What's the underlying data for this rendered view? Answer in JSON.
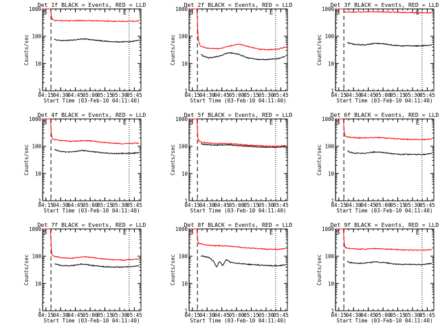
{
  "chart_data": [
    {
      "type": "line",
      "title": "Det 1f BLACK = Events, RED = LLD",
      "ylabel": "Counts/sec",
      "xlabel": "Start Time (03-Feb-10 04:11:40)",
      "xticks": [
        "04:15",
        "04:30",
        "04:45",
        "05:00",
        "05:15",
        "05:30",
        "05:45"
      ],
      "yticks": [
        "1",
        "10",
        "100",
        "1000"
      ],
      "ylim": [
        1,
        1000
      ],
      "yscale": "log",
      "x_unit": "minutes after 04:11:40",
      "s_label": "S",
      "e_label": "E",
      "series": [
        {
          "name": "Events",
          "color": "#000000",
          "x": [
            12,
            14,
            20,
            30,
            40,
            50,
            60,
            70,
            80,
            90,
            98
          ],
          "y": [
            78,
            72,
            70,
            72,
            80,
            74,
            68,
            62,
            62,
            64,
            70
          ]
        },
        {
          "name": "LLD",
          "color": "#ff0000",
          "x": [
            0,
            8,
            8.5,
            9,
            10,
            12,
            20,
            30,
            40,
            50,
            60,
            70,
            80,
            90,
            98
          ],
          "y": [
            1000,
            1000,
            700,
            500,
            420,
            380,
            370,
            370,
            375,
            372,
            360,
            355,
            350,
            355,
            360
          ]
        }
      ]
    },
    {
      "type": "line",
      "title": "Det 2f BLACK = Events, RED = LLD",
      "ylabel": "Counts/sec",
      "xlabel": "Start Time (03-Feb-10 04:11:40)",
      "xticks": [
        "04:15",
        "04:30",
        "04:45",
        "05:00",
        "05:15",
        "05:30",
        "05:45"
      ],
      "yticks": [
        "1",
        "10",
        "100",
        "1000"
      ],
      "ylim": [
        1,
        1000
      ],
      "yscale": "log",
      "x_unit": "minutes after 04:11:40",
      "s_label": "S",
      "e_label": "E",
      "series": [
        {
          "name": "Events",
          "color": "#000000",
          "x": [
            12,
            14,
            20,
            30,
            40,
            50,
            60,
            70,
            80,
            90,
            98
          ],
          "y": [
            22,
            19,
            16,
            18,
            25,
            22,
            16,
            14,
            14,
            15,
            18
          ]
        },
        {
          "name": "LLD",
          "color": "#ff0000",
          "x": [
            0,
            8,
            8.5,
            9,
            10,
            12,
            20,
            30,
            40,
            50,
            60,
            70,
            80,
            90,
            98
          ],
          "y": [
            1000,
            1000,
            300,
            120,
            60,
            42,
            36,
            35,
            42,
            52,
            42,
            34,
            32,
            33,
            40
          ]
        }
      ]
    },
    {
      "type": "line",
      "title": "Det 3f BLACK = Events, RED = LLD",
      "ylabel": "Counts/sec",
      "xlabel": "Start Time (03-Feb-10 04:11:40)",
      "xticks": [
        "04:15",
        "04:30",
        "04:45",
        "05:00",
        "05:15",
        "05:30",
        "05:45"
      ],
      "yticks": [
        "1",
        "10",
        "100",
        "1000"
      ],
      "ylim": [
        1,
        1000
      ],
      "yscale": "log",
      "x_unit": "minutes after 04:11:40",
      "s_label": "S",
      "e_label": "E",
      "series": [
        {
          "name": "Events",
          "color": "#000000",
          "x": [
            12,
            14,
            20,
            30,
            40,
            50,
            60,
            70,
            80,
            90,
            98
          ],
          "y": [
            60,
            55,
            50,
            48,
            55,
            52,
            46,
            44,
            44,
            45,
            48
          ]
        },
        {
          "name": "LLD",
          "color": "#ff0000",
          "x": [
            0,
            8,
            8.5,
            9,
            10,
            12,
            20,
            30,
            40,
            50,
            60,
            70,
            80,
            90,
            98
          ],
          "y": [
            1000,
            1000,
            900,
            800,
            780,
            770,
            770,
            780,
            790,
            780,
            760,
            740,
            730,
            720,
            730
          ]
        }
      ]
    },
    {
      "type": "line",
      "title": "Det 4f BLACK = Events, RED = LLD",
      "ylabel": "Counts/sec",
      "xlabel": "Start Time (03-Feb-10 04:11:40)",
      "xticks": [
        "04:15",
        "04:30",
        "04:45",
        "05:00",
        "05:15",
        "05:30",
        "05:45"
      ],
      "yticks": [
        "1",
        "10",
        "100",
        "1000"
      ],
      "ylim": [
        1,
        1000
      ],
      "yscale": "log",
      "x_unit": "minutes after 04:11:40",
      "s_label": "S",
      "e_label": "E",
      "series": [
        {
          "name": "Events",
          "color": "#000000",
          "x": [
            12,
            14,
            20,
            30,
            40,
            50,
            60,
            70,
            80,
            90,
            98
          ],
          "y": [
            80,
            70,
            62,
            62,
            70,
            64,
            58,
            54,
            54,
            55,
            58
          ]
        },
        {
          "name": "LLD",
          "color": "#ff0000",
          "x": [
            0,
            8,
            8.5,
            9,
            10,
            12,
            20,
            30,
            40,
            50,
            60,
            70,
            80,
            90,
            98
          ],
          "y": [
            1000,
            1000,
            400,
            250,
            190,
            175,
            160,
            150,
            160,
            155,
            140,
            130,
            125,
            125,
            130
          ]
        }
      ]
    },
    {
      "type": "line",
      "title": "Det 5f BLACK = Events, RED = LLD",
      "ylabel": "Counts/sec",
      "xlabel": "Start Time (03-Feb-10 04:11:40)",
      "xticks": [
        "04:15",
        "04:30",
        "04:45",
        "05:00",
        "05:15",
        "05:30",
        "05:45"
      ],
      "yticks": [
        "1",
        "10",
        "100",
        "1000"
      ],
      "ylim": [
        1,
        1000
      ],
      "yscale": "log",
      "x_unit": "minutes after 04:11:40",
      "s_label": "S",
      "e_label": "E",
      "series": [
        {
          "name": "Events",
          "color": "#000000",
          "x": [
            12,
            14,
            20,
            30,
            40,
            50,
            60,
            70,
            80,
            90,
            98
          ],
          "y": [
            125,
            118,
            112,
            110,
            112,
            105,
            100,
            95,
            92,
            92,
            95
          ]
        },
        {
          "name": "LLD",
          "color": "#ff0000",
          "x": [
            0,
            8,
            8.5,
            9,
            10,
            12,
            20,
            30,
            40,
            50,
            60,
            70,
            80,
            90,
            98
          ],
          "y": [
            1000,
            1000,
            350,
            200,
            155,
            140,
            130,
            125,
            125,
            118,
            110,
            105,
            100,
            100,
            105
          ]
        }
      ]
    },
    {
      "type": "line",
      "title": "Det 6f BLACK = Events, RED = LLD",
      "ylabel": "Counts/sec",
      "xlabel": "Start Time (03-Feb-10 04:11:40)",
      "xticks": [
        "04:15",
        "04:30",
        "04:45",
        "05:00",
        "05:15",
        "05:30",
        "05:45"
      ],
      "yticks": [
        "1",
        "10",
        "100",
        "1000"
      ],
      "ylim": [
        1,
        1000
      ],
      "yscale": "log",
      "x_unit": "minutes after 04:11:40",
      "s_label": "S",
      "e_label": "E",
      "series": [
        {
          "name": "Events",
          "color": "#000000",
          "x": [
            12,
            14,
            20,
            30,
            40,
            50,
            60,
            70,
            80,
            90,
            98
          ],
          "y": [
            68,
            62,
            55,
            55,
            62,
            58,
            52,
            50,
            50,
            50,
            55
          ]
        },
        {
          "name": "LLD",
          "color": "#ff0000",
          "x": [
            0,
            8,
            8.5,
            9,
            10,
            12,
            20,
            30,
            40,
            50,
            60,
            70,
            80,
            90,
            98
          ],
          "y": [
            1000,
            1000,
            500,
            300,
            240,
            220,
            205,
            200,
            210,
            200,
            190,
            180,
            175,
            175,
            185
          ]
        }
      ]
    },
    {
      "type": "line",
      "title": "Det 7f BLACK = Events, RED = LLD",
      "ylabel": "Counts/sec",
      "xlabel": "Start Time (03-Feb-10 04:11:40)",
      "xticks": [
        "04:15",
        "04:30",
        "04:45",
        "05:00",
        "05:15",
        "05:30",
        "05:45"
      ],
      "yticks": [
        "1",
        "10",
        "100",
        "1000"
      ],
      "ylim": [
        1,
        1000
      ],
      "yscale": "log",
      "x_unit": "minutes after 04:11:40",
      "s_label": "S",
      "e_label": "E",
      "series": [
        {
          "name": "Events",
          "color": "#000000",
          "x": [
            12,
            14,
            20,
            30,
            40,
            50,
            60,
            70,
            80,
            90,
            98
          ],
          "y": [
            55,
            50,
            45,
            45,
            52,
            46,
            42,
            40,
            40,
            42,
            45
          ]
        },
        {
          "name": "LLD",
          "color": "#ff0000",
          "x": [
            0,
            8,
            8.5,
            9,
            10,
            12,
            20,
            30,
            40,
            50,
            60,
            70,
            80,
            90,
            98
          ],
          "y": [
            1000,
            1000,
            300,
            150,
            110,
            98,
            88,
            85,
            95,
            90,
            80,
            75,
            72,
            75,
            80
          ]
        }
      ]
    },
    {
      "type": "line",
      "title": "Det 8f BLACK = Events, RED = LLD",
      "ylabel": "Counts/sec",
      "xlabel": "Start Time (03-Feb-10 04:11:40)",
      "xticks": [
        "04:15",
        "04:30",
        "04:45",
        "05:00",
        "05:15",
        "05:30",
        "05:45"
      ],
      "yticks": [
        "1",
        "10",
        "100",
        "1000"
      ],
      "ylim": [
        1,
        1000
      ],
      "yscale": "log",
      "x_unit": "minutes after 04:11:40",
      "s_label": "S",
      "e_label": "E",
      "series": [
        {
          "name": "Events",
          "color": "#000000",
          "x": [
            12,
            14,
            20,
            25,
            28,
            31,
            34,
            38,
            42,
            50,
            60,
            70,
            80,
            90,
            98
          ],
          "y": [
            105,
            100,
            90,
            65,
            40,
            65,
            45,
            75,
            60,
            55,
            50,
            48,
            45,
            45,
            48
          ]
        },
        {
          "name": "LLD",
          "color": "#ff0000",
          "x": [
            0,
            8,
            8.5,
            9,
            10,
            12,
            20,
            30,
            40,
            50,
            60,
            70,
            80,
            90,
            98
          ],
          "y": [
            1000,
            1000,
            500,
            350,
            300,
            280,
            250,
            240,
            235,
            220,
            200,
            190,
            180,
            180,
            190
          ]
        }
      ]
    },
    {
      "type": "line",
      "title": "Det 9f BLACK = Events, RED = LLD",
      "ylabel": "Counts/sec",
      "xlabel": "Start Time (03-Feb-10 04:11:40)",
      "xticks": [
        "04:15",
        "04:30",
        "04:45",
        "05:00",
        "05:15",
        "05:30",
        "05:45"
      ],
      "yticks": [
        "1",
        "10",
        "100",
        "1000"
      ],
      "ylim": [
        1,
        1000
      ],
      "yscale": "log",
      "x_unit": "minutes after 04:11:40",
      "s_label": "S",
      "e_label": "E",
      "series": [
        {
          "name": "Events",
          "color": "#000000",
          "x": [
            12,
            14,
            20,
            30,
            40,
            50,
            60,
            70,
            80,
            90,
            98
          ],
          "y": [
            65,
            60,
            55,
            56,
            62,
            58,
            52,
            50,
            50,
            50,
            55
          ]
        },
        {
          "name": "LLD",
          "color": "#ff0000",
          "x": [
            0,
            8,
            8.5,
            9,
            10,
            12,
            20,
            30,
            40,
            50,
            60,
            70,
            80,
            90,
            98
          ],
          "y": [
            1000,
            1000,
            450,
            260,
            210,
            195,
            185,
            180,
            190,
            185,
            175,
            170,
            165,
            165,
            175
          ]
        }
      ]
    }
  ]
}
